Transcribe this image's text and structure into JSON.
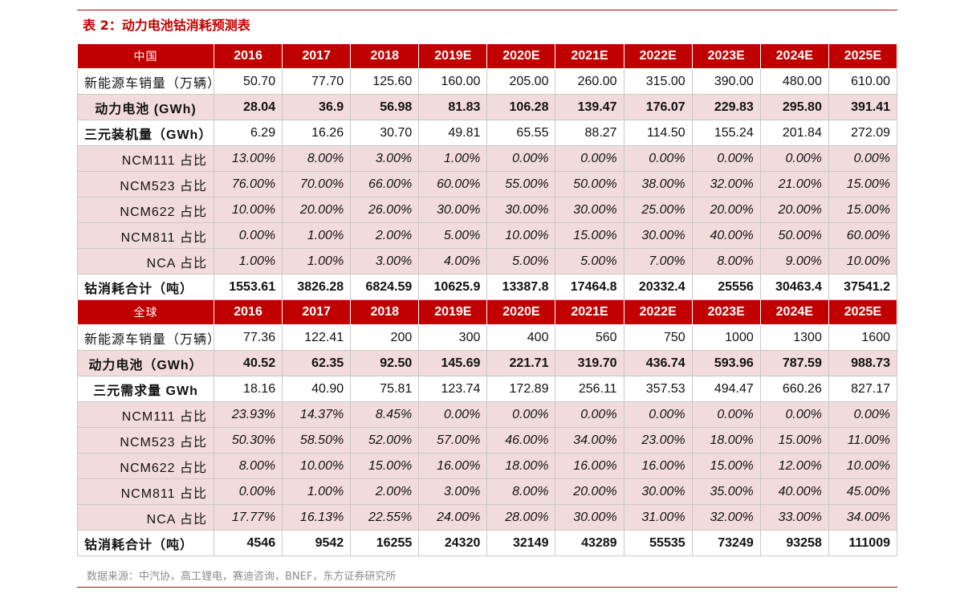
{
  "title": "表 2：动力电池钴消耗预测表",
  "source": "数据来源：中汽协，高工锂电，赛迪咨询，BNEF，东方证券研究所",
  "colors": {
    "accent": "#c00000",
    "band": "#f2dcdb",
    "header_text": "#ffffff"
  },
  "china": {
    "header": [
      "中国",
      "2016",
      "2017",
      "2018",
      "2019E",
      "2020E",
      "2021E",
      "2022E",
      "2023E",
      "2024E",
      "2025E"
    ],
    "rows": [
      [
        "新能源车销量（万辆）",
        "50.70",
        "77.70",
        "125.60",
        "160.00",
        "205.00",
        "260.00",
        "315.00",
        "390.00",
        "480.00",
        "610.00"
      ],
      [
        "动力电池 (GWh)",
        "28.04",
        "36.9",
        "56.98",
        "81.83",
        "106.28",
        "139.47",
        "176.07",
        "229.83",
        "295.80",
        "391.41"
      ],
      [
        "三元装机量（GWh）",
        "6.29",
        "16.26",
        "30.70",
        "49.81",
        "65.55",
        "88.27",
        "114.50",
        "155.24",
        "201.84",
        "272.09"
      ],
      [
        "NCM111 占比",
        "13.00%",
        "8.00%",
        "3.00%",
        "1.00%",
        "0.00%",
        "0.00%",
        "0.00%",
        "0.00%",
        "0.00%",
        "0.00%"
      ],
      [
        "NCM523 占比",
        "76.00%",
        "70.00%",
        "66.00%",
        "60.00%",
        "55.00%",
        "50.00%",
        "38.00%",
        "32.00%",
        "21.00%",
        "15.00%"
      ],
      [
        "NCM622 占比",
        "10.00%",
        "20.00%",
        "26.00%",
        "30.00%",
        "30.00%",
        "30.00%",
        "25.00%",
        "20.00%",
        "20.00%",
        "15.00%"
      ],
      [
        "NCM811 占比",
        "0.00%",
        "1.00%",
        "2.00%",
        "5.00%",
        "10.00%",
        "15.00%",
        "30.00%",
        "40.00%",
        "50.00%",
        "60.00%"
      ],
      [
        "NCA 占比",
        "1.00%",
        "1.00%",
        "3.00%",
        "4.00%",
        "5.00%",
        "5.00%",
        "7.00%",
        "8.00%",
        "9.00%",
        "10.00%"
      ],
      [
        "钴消耗合计（吨）",
        "1553.61",
        "3826.28",
        "6824.59",
        "10625.9",
        "13387.8",
        "17464.8",
        "20332.4",
        "25556",
        "30463.4",
        "37541.2"
      ]
    ]
  },
  "global": {
    "header": [
      "全球",
      "2016",
      "2017",
      "2018",
      "2019E",
      "2020E",
      "2021E",
      "2022E",
      "2023E",
      "2024E",
      "2025E"
    ],
    "rows": [
      [
        "新能源车销量（万辆）",
        "77.36",
        "122.41",
        "200",
        "300",
        "400",
        "560",
        "750",
        "1000",
        "1300",
        "1600"
      ],
      [
        "动力电池（GWh）",
        "40.52",
        "62.35",
        "92.50",
        "145.69",
        "221.71",
        "319.70",
        "436.74",
        "593.96",
        "787.59",
        "988.73"
      ],
      [
        "三元需求量 GWh",
        "18.16",
        "40.90",
        "75.81",
        "123.74",
        "172.89",
        "256.11",
        "357.53",
        "494.47",
        "660.26",
        "827.17"
      ],
      [
        "NCM111 占比",
        "23.93%",
        "14.37%",
        "8.45%",
        "0.00%",
        "0.00%",
        "0.00%",
        "0.00%",
        "0.00%",
        "0.00%",
        "0.00%"
      ],
      [
        "NCM523 占比",
        "50.30%",
        "58.50%",
        "52.00%",
        "57.00%",
        "46.00%",
        "34.00%",
        "23.00%",
        "18.00%",
        "15.00%",
        "11.00%"
      ],
      [
        "NCM622 占比",
        "8.00%",
        "10.00%",
        "15.00%",
        "16.00%",
        "18.00%",
        "16.00%",
        "16.00%",
        "15.00%",
        "12.00%",
        "10.00%"
      ],
      [
        "NCM811 占比",
        "0.00%",
        "1.00%",
        "2.00%",
        "3.00%",
        "8.00%",
        "20.00%",
        "30.00%",
        "35.00%",
        "40.00%",
        "45.00%"
      ],
      [
        "NCA 占比",
        "17.77%",
        "16.13%",
        "22.55%",
        "24.00%",
        "28.00%",
        "30.00%",
        "31.00%",
        "32.00%",
        "33.00%",
        "34.00%"
      ],
      [
        "钴消耗合计（吨）",
        "4546",
        "9542",
        "16255",
        "24320",
        "32149",
        "43289",
        "55535",
        "73249",
        "93258",
        "111009"
      ]
    ]
  }
}
